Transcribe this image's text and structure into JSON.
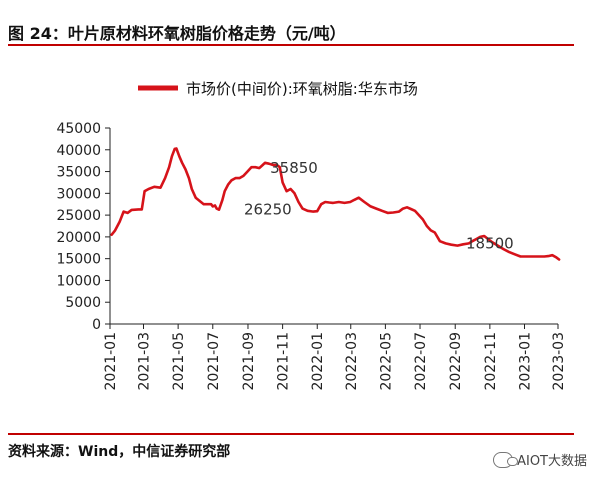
{
  "header": {
    "title": "图 24：叶片原材料环氧树脂价格走势（元/吨）"
  },
  "footer": {
    "source": "资料来源：Wind，中信证券研究部",
    "watermark": "AIOT大数据"
  },
  "colors": {
    "series": "#d6131a",
    "rule": "#c00000"
  },
  "chart_data": {
    "type": "line",
    "title": "图 24：叶片原材料环氧树脂价格走势（元/吨）",
    "ylim": [
      0,
      45000
    ],
    "yticks": [
      0,
      5000,
      10000,
      15000,
      20000,
      25000,
      30000,
      35000,
      40000,
      45000
    ],
    "xlim": [
      "2021-01-01",
      "2023-03-01"
    ],
    "xticks": [
      "2021-01",
      "2021-03",
      "2021-05",
      "2021-07",
      "2021-09",
      "2021-11",
      "2022-01",
      "2022-03",
      "2022-05",
      "2022-07",
      "2022-09",
      "2022-11",
      "2023-01",
      "2023-03"
    ],
    "legend": {
      "position": "top"
    },
    "annotations": [
      {
        "text": "35850",
        "x": "2021-10-10",
        "y": 35850
      },
      {
        "text": "26250",
        "x": "2021-08-25",
        "y": 26250
      },
      {
        "text": "18500",
        "x": "2022-09-20",
        "y": 18500
      }
    ],
    "series": [
      {
        "name": "市场价(中间价):环氧树脂:华东市场",
        "x": [
          "2021-01-04",
          "2021-01-10",
          "2021-01-18",
          "2021-01-25",
          "2021-02-01",
          "2021-02-08",
          "2021-02-20",
          "2021-02-26",
          "2021-03-03",
          "2021-03-10",
          "2021-03-20",
          "2021-03-31",
          "2021-04-08",
          "2021-04-15",
          "2021-04-20",
          "2021-04-25",
          "2021-04-28",
          "2021-05-03",
          "2021-05-08",
          "2021-05-14",
          "2021-05-20",
          "2021-05-25",
          "2021-06-01",
          "2021-06-15",
          "2021-06-28",
          "2021-07-01",
          "2021-07-05",
          "2021-07-08",
          "2021-07-12",
          "2021-07-18",
          "2021-07-22",
          "2021-07-28",
          "2021-08-03",
          "2021-08-10",
          "2021-08-17",
          "2021-08-24",
          "2021-08-31",
          "2021-09-07",
          "2021-09-14",
          "2021-09-21",
          "2021-09-27",
          "2021-10-01",
          "2021-10-08",
          "2021-10-15",
          "2021-10-22",
          "2021-10-27",
          "2021-11-01",
          "2021-11-08",
          "2021-11-15",
          "2021-11-22",
          "2021-11-29",
          "2021-12-06",
          "2021-12-15",
          "2021-12-25",
          "2022-01-01",
          "2022-01-08",
          "2022-01-15",
          "2022-01-22",
          "2022-01-29",
          "2022-02-08",
          "2022-02-18",
          "2022-02-28",
          "2022-03-07",
          "2022-03-15",
          "2022-03-25",
          "2022-04-05",
          "2022-04-15",
          "2022-04-25",
          "2022-05-05",
          "2022-05-15",
          "2022-05-25",
          "2022-06-01",
          "2022-06-08",
          "2022-06-15",
          "2022-06-22",
          "2022-06-29",
          "2022-07-06",
          "2022-07-13",
          "2022-07-20",
          "2022-07-27",
          "2022-08-05",
          "2022-08-15",
          "2022-08-25",
          "2022-09-05",
          "2022-09-15",
          "2022-09-25",
          "2022-10-01",
          "2022-10-08",
          "2022-10-15",
          "2022-10-22",
          "2022-10-29",
          "2022-11-05",
          "2022-11-15",
          "2022-11-25",
          "2022-12-05",
          "2022-12-15",
          "2022-12-25",
          "2023-01-05",
          "2023-01-15",
          "2023-01-25",
          "2023-02-05",
          "2023-02-12",
          "2023-02-19",
          "2023-02-26",
          "2023-03-03"
        ],
        "y": [
          20500,
          21500,
          23500,
          25800,
          25500,
          26200,
          26300,
          26300,
          30500,
          31000,
          31500,
          31300,
          33500,
          36000,
          38500,
          40200,
          40300,
          38500,
          37000,
          35500,
          33500,
          31000,
          29000,
          27500,
          27500,
          27000,
          27200,
          26500,
          26250,
          28500,
          30500,
          32000,
          33000,
          33500,
          33500,
          34000,
          35000,
          36000,
          36000,
          35800,
          36500,
          37000,
          36800,
          36500,
          36500,
          36000,
          32500,
          30500,
          31000,
          30000,
          28000,
          26500,
          26000,
          25800,
          25900,
          27500,
          28000,
          27900,
          27800,
          28000,
          27800,
          28000,
          28500,
          29000,
          28000,
          27000,
          26500,
          26000,
          25500,
          25600,
          25800,
          26500,
          26800,
          26400,
          26000,
          25000,
          24000,
          22500,
          21500,
          21000,
          19000,
          18500,
          18200,
          18000,
          18300,
          18500,
          19000,
          19500,
          20000,
          20200,
          19500,
          18800,
          18000,
          17200,
          16500,
          16000,
          15500,
          15500,
          15500,
          15500,
          15500,
          15600,
          15800,
          15300,
          14800
        ]
      }
    ]
  }
}
